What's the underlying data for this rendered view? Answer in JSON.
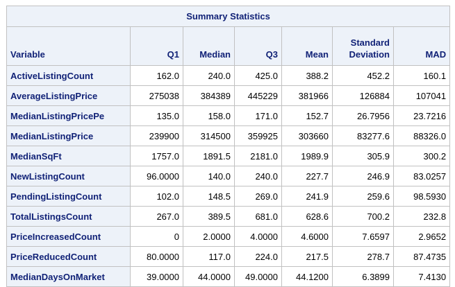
{
  "table": {
    "title": "Summary Statistics",
    "columns": [
      "Variable",
      "Q1",
      "Median",
      "Q3",
      "Mean",
      "Standard Deviation",
      "MAD"
    ],
    "rows": [
      [
        "ActiveListingCount",
        "162.0",
        "240.0",
        "425.0",
        "388.2",
        "452.2",
        "160.1"
      ],
      [
        "AverageListingPrice",
        "275038",
        "384389",
        "445229",
        "381966",
        "126884",
        "107041"
      ],
      [
        "MedianListingPricePe",
        "135.0",
        "158.0",
        "171.0",
        "152.7",
        "26.7956",
        "23.7216"
      ],
      [
        "MedianListingPrice",
        "239900",
        "314500",
        "359925",
        "303660",
        "83277.6",
        "88326.0"
      ],
      [
        "MedianSqFt",
        "1757.0",
        "1891.5",
        "2181.0",
        "1989.9",
        "305.9",
        "300.2"
      ],
      [
        "NewListingCount",
        "96.0000",
        "140.0",
        "240.0",
        "227.7",
        "246.9",
        "83.0257"
      ],
      [
        "PendingListingCount",
        "102.0",
        "148.5",
        "269.0",
        "241.9",
        "259.6",
        "98.5930"
      ],
      [
        "TotalListingsCount",
        "267.0",
        "389.5",
        "681.0",
        "628.6",
        "700.2",
        "232.8"
      ],
      [
        "PriceIncreasedCount",
        "0",
        "2.0000",
        "4.0000",
        "4.6000",
        "7.6597",
        "2.9652"
      ],
      [
        "PriceReducedCount",
        "80.0000",
        "117.0",
        "224.0",
        "217.5",
        "278.7",
        "87.4735"
      ],
      [
        "MedianDaysOnMarket",
        "39.0000",
        "44.0000",
        "49.0000",
        "44.1200",
        "6.3899",
        "7.4130"
      ]
    ]
  }
}
